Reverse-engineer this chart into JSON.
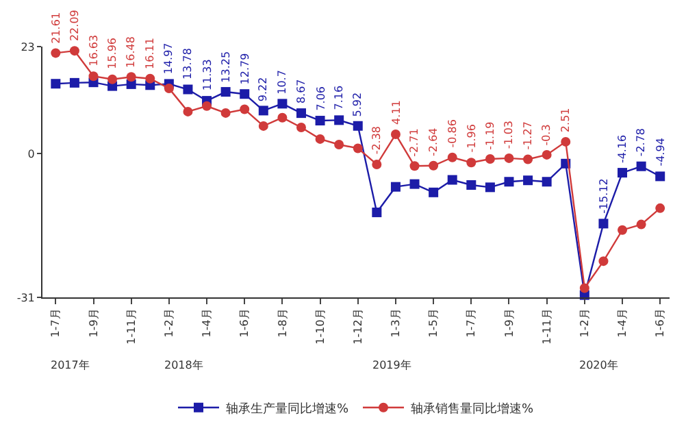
{
  "chart_data": {
    "type": "line",
    "categories": [
      "1-7月",
      null,
      "1-9月",
      null,
      "1-11月",
      null,
      "1-2月",
      null,
      "1-4月",
      null,
      "1-6月",
      null,
      "1-8月",
      null,
      "1-10月",
      null,
      "1-12月",
      null,
      "1-3月",
      null,
      "1-5月",
      null,
      "1-7月",
      null,
      "1-9月",
      null,
      "1-11月",
      null,
      "1-2月",
      null,
      "1-4月",
      null,
      "1-6月"
    ],
    "series": [
      {
        "name": "轴承生产量同比增速%",
        "color": "#1c1ca8",
        "marker": "square",
        "values": [
          15.0,
          15.2,
          15.3,
          14.5,
          14.9,
          14.7,
          14.97,
          13.78,
          11.33,
          13.25,
          12.79,
          9.22,
          10.7,
          8.67,
          7.06,
          7.16,
          5.92,
          -12.7,
          -7.2,
          -6.6,
          -8.4,
          -5.7,
          -6.8,
          -7.3,
          -6.1,
          -5.8,
          -6.1,
          -2.2,
          -30.5,
          -15.12,
          -4.16,
          -2.78,
          -4.94
        ],
        "value_labels": [
          null,
          null,
          null,
          null,
          null,
          null,
          "14.97",
          "13.78",
          "11.33",
          "13.25",
          "12.79",
          "9.22",
          "10.7",
          "8.67",
          "7.06",
          "7.16",
          "5.92",
          null,
          null,
          null,
          null,
          null,
          null,
          null,
          null,
          null,
          null,
          null,
          null,
          "-15.12",
          "-4.16",
          "-2.78",
          "-4.94"
        ]
      },
      {
        "name": "轴承销售量同比增速%",
        "color": "#d03a3a",
        "marker": "circle",
        "values": [
          21.61,
          22.09,
          16.63,
          15.96,
          16.48,
          16.11,
          14.0,
          9.0,
          10.2,
          8.7,
          9.5,
          5.9,
          7.7,
          5.6,
          3.1,
          1.9,
          1.1,
          -2.38,
          4.11,
          -2.71,
          -2.64,
          -0.86,
          -1.96,
          -1.19,
          -1.03,
          -1.27,
          -0.3,
          2.51,
          -29.0,
          -23.2,
          -16.5,
          -15.3,
          -11.8
        ],
        "value_labels": [
          "21.61",
          "22.09",
          "16.63",
          "15.96",
          "16.48",
          "16.11",
          null,
          null,
          null,
          null,
          null,
          null,
          null,
          null,
          null,
          null,
          null,
          "-2.38",
          "4.11",
          "-2.71",
          "-2.64",
          "-0.86",
          "-1.96",
          "-1.19",
          "-1.03",
          "-1.27",
          "-0.3",
          "2.51",
          null,
          null,
          null,
          null,
          null
        ]
      }
    ],
    "ylim": [
      -31,
      23
    ],
    "yticks": [
      23,
      0,
      -31
    ],
    "annotations": [
      "2017年",
      "2018年",
      "2019年",
      "2020年"
    ],
    "legend": "bottom"
  }
}
